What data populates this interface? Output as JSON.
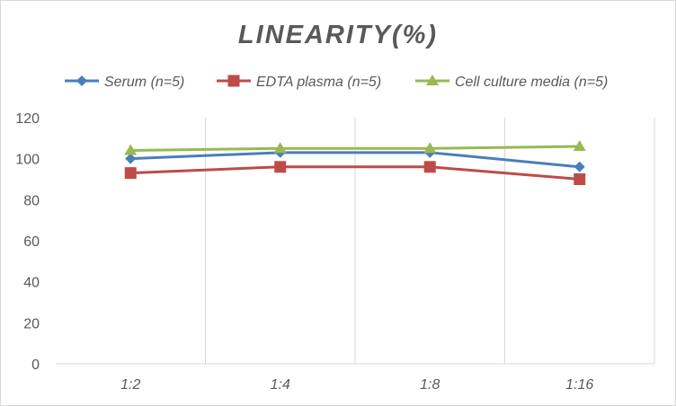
{
  "chart_data": {
    "type": "line",
    "title": "LINEARITY(%)",
    "categories": [
      "1:2",
      "1:4",
      "1:8",
      "1:16"
    ],
    "ylim": [
      0,
      120
    ],
    "yticks": [
      0,
      20,
      40,
      60,
      80,
      100,
      120
    ],
    "grid": "vertical",
    "legend_position": "top",
    "series": [
      {
        "name": "Serum (n=5)",
        "color": "#4a7ebb",
        "marker": "diamond",
        "values": [
          100,
          103,
          103,
          96
        ]
      },
      {
        "name": "EDTA plasma (n=5)",
        "color": "#be4b48",
        "marker": "square",
        "values": [
          93,
          96,
          96,
          90
        ]
      },
      {
        "name": "Cell culture media (n=5)",
        "color": "#98b954",
        "marker": "triangle",
        "values": [
          104,
          105,
          105,
          106
        ]
      }
    ]
  }
}
